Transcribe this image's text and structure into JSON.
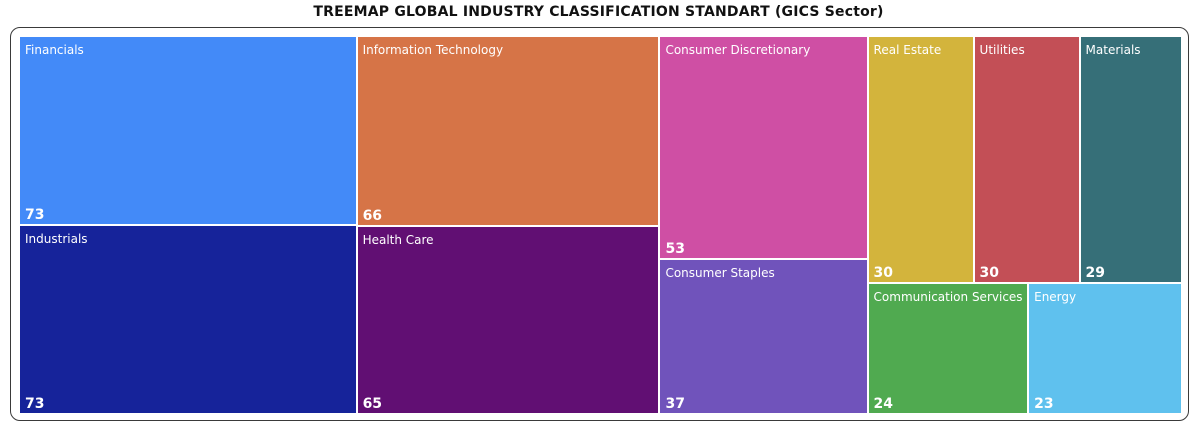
{
  "chart_data": {
    "type": "treemap",
    "title": "TREEMAP GLOBAL INDUSTRY CLASSIFICATION STANDART (GICS Sector)",
    "items": [
      {
        "name": "Financials",
        "value": 73,
        "color": "#438AF8"
      },
      {
        "name": "Industrials",
        "value": 73,
        "color": "#16239A"
      },
      {
        "name": "Information Technology",
        "value": 66,
        "color": "#D67447"
      },
      {
        "name": "Health Care",
        "value": 65,
        "color": "#610F73"
      },
      {
        "name": "Consumer Discretionary",
        "value": 53,
        "color": "#CF4FA4"
      },
      {
        "name": "Consumer Staples",
        "value": 37,
        "color": "#7053BB"
      },
      {
        "name": "Real Estate",
        "value": 30,
        "color": "#D3B43C"
      },
      {
        "name": "Utilities",
        "value": 30,
        "color": "#C34F56"
      },
      {
        "name": "Materials",
        "value": 29,
        "color": "#366F78"
      },
      {
        "name": "Communication Services",
        "value": 24,
        "color": "#50AA50"
      },
      {
        "name": "Energy",
        "value": 23,
        "color": "#5FC1EE"
      }
    ]
  }
}
